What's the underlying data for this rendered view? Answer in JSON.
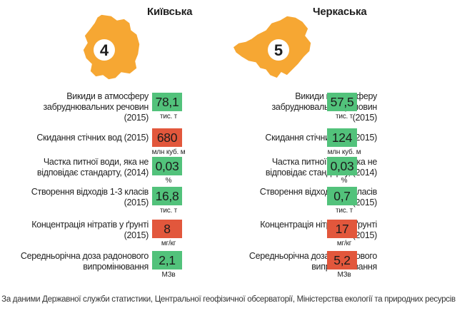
{
  "regions": [
    {
      "name": "Київська",
      "rank": "4",
      "map_color": "#f6a733",
      "rows": [
        {
          "label": [
            "Викиди в атмосферу",
            "забруднювальних речовин",
            "(2015)"
          ],
          "value": "78,1",
          "unit": "тис. т",
          "status": "green"
        },
        {
          "label": [
            "Скидання стічних вод (2015)"
          ],
          "value": "680",
          "unit": "млн куб. м",
          "status": "red"
        },
        {
          "label": [
            "Частка питної води, яка не",
            "відповідає стандарту, (2014)"
          ],
          "value": "0,03",
          "unit": "%",
          "status": "green"
        },
        {
          "label": [
            "Створення відходів 1-3 класів",
            "(2015)"
          ],
          "value": "16,8",
          "unit": "тис. т",
          "status": "green"
        },
        {
          "label": [
            "Концентрація нітратів у ґрунті",
            "(2015)"
          ],
          "value": "8",
          "unit": "мг/кг",
          "status": "red"
        },
        {
          "label": [
            "Середньорічна доза радонового",
            "випромінювання"
          ],
          "value": "2,1",
          "unit": "МЗв",
          "status": "green"
        }
      ]
    },
    {
      "name": "Черкаська",
      "rank": "5",
      "map_color": "#f6a733",
      "rows": [
        {
          "label": [
            "Викиди в атмосферу",
            "забруднювальних речовин",
            "(2015)"
          ],
          "value": "57,5",
          "unit": "тис. т",
          "status": "green"
        },
        {
          "label": [
            "Скидання стічних вод (2015)"
          ],
          "value": "124",
          "unit": "млн куб. м",
          "status": "green"
        },
        {
          "label": [
            "Частка питної води, яка не",
            "відповідає стандарту, (2014)"
          ],
          "value": "0,03",
          "unit": "%",
          "status": "green"
        },
        {
          "label": [
            "Створення відходів 1-3 класів",
            "(2015)"
          ],
          "value": "0,7",
          "unit": "тис. т",
          "status": "green"
        },
        {
          "label": [
            "Концентрація нітратів у ґрунті",
            "(2015)"
          ],
          "value": "17",
          "unit": "мг/кг",
          "status": "red"
        },
        {
          "label": [
            "Середньорічна доза радонового",
            "випромінювання"
          ],
          "value": "5,2",
          "unit": "МЗв",
          "status": "red"
        }
      ]
    }
  ],
  "colors": {
    "green": "#52c27b",
    "red": "#e2573c",
    "map": "#f6a733"
  },
  "source": "За даними Державної служби статистики, Центральної геофізичної обсерваторії, Міністерства екології та природних ресурсів"
}
